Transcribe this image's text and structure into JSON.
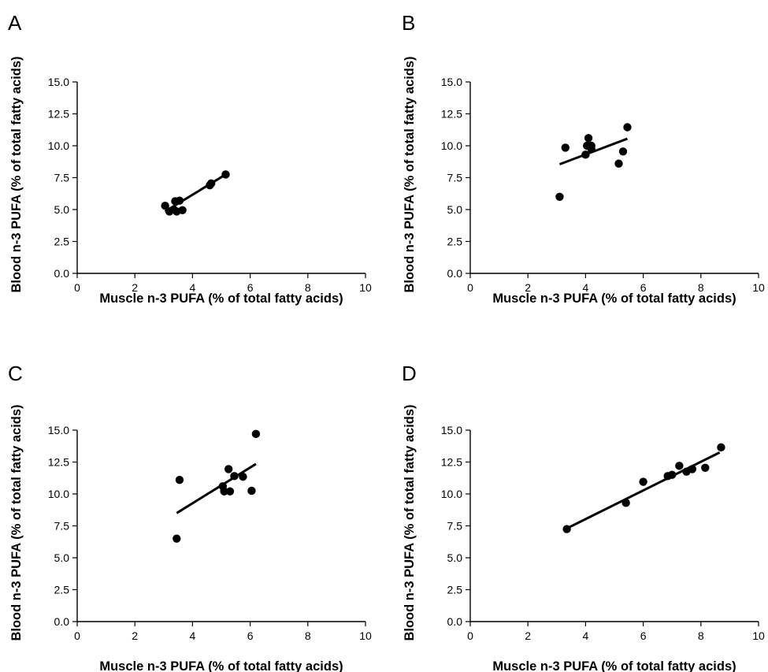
{
  "chart_data": [
    {
      "panel": "A",
      "type": "scatter",
      "xlabel": "Muscle n-3 PUFA (% of total fatty acids)",
      "ylabel": "Blood n-3 PUFA (% of total fatty acids)",
      "xlim": [
        0,
        10
      ],
      "ylim": [
        0,
        15
      ],
      "xticks": [
        "0",
        "2",
        "4",
        "6",
        "8",
        "10"
      ],
      "yticks": [
        "0.0",
        "2.5",
        "5.0",
        "7.5",
        "10.0",
        "12.5",
        "15.0"
      ],
      "points": [
        {
          "x": 3.05,
          "y": 5.3
        },
        {
          "x": 3.2,
          "y": 4.85
        },
        {
          "x": 3.35,
          "y": 5.0
        },
        {
          "x": 3.4,
          "y": 5.65
        },
        {
          "x": 3.45,
          "y": 4.85
        },
        {
          "x": 3.55,
          "y": 5.7
        },
        {
          "x": 3.65,
          "y": 4.95
        },
        {
          "x": 4.6,
          "y": 6.9
        },
        {
          "x": 4.65,
          "y": 7.05
        },
        {
          "x": 5.15,
          "y": 7.75
        }
      ],
      "fit": {
        "x": [
          3.05,
          5.15
        ],
        "y": [
          4.85,
          7.75
        ]
      }
    },
    {
      "panel": "B",
      "type": "scatter",
      "xlabel": "Muscle n-3 PUFA (% of total fatty acids)",
      "ylabel": "Blood n-3 PUFA (% of total fatty acids)",
      "xlim": [
        0,
        10
      ],
      "ylim": [
        0,
        15
      ],
      "xticks": [
        "0",
        "2",
        "4",
        "6",
        "8",
        "10"
      ],
      "yticks": [
        "0.0",
        "2.5",
        "5.0",
        "7.5",
        "10.0",
        "12.5",
        "15.0"
      ],
      "points": [
        {
          "x": 3.1,
          "y": 6.0
        },
        {
          "x": 3.3,
          "y": 9.85
        },
        {
          "x": 4.0,
          "y": 9.3
        },
        {
          "x": 4.05,
          "y": 10.0
        },
        {
          "x": 4.1,
          "y": 10.6
        },
        {
          "x": 4.2,
          "y": 10.0
        },
        {
          "x": 4.2,
          "y": 9.75
        },
        {
          "x": 5.15,
          "y": 8.6
        },
        {
          "x": 5.3,
          "y": 9.55
        },
        {
          "x": 5.45,
          "y": 11.45
        }
      ],
      "fit": {
        "x": [
          3.1,
          5.45
        ],
        "y": [
          8.55,
          10.55
        ]
      }
    },
    {
      "panel": "C",
      "type": "scatter",
      "xlabel": "Muscle n-3 PUFA (% of total fatty acids)",
      "ylabel": "Blood n-3 PUFA (% of total fatty acids)",
      "xlim": [
        0,
        10
      ],
      "ylim": [
        0,
        15
      ],
      "xticks": [
        "0",
        "2",
        "4",
        "6",
        "8",
        "10"
      ],
      "yticks": [
        "0.0",
        "2.5",
        "5.0",
        "7.5",
        "10.0",
        "12.5",
        "15.0"
      ],
      "points": [
        {
          "x": 3.45,
          "y": 6.5
        },
        {
          "x": 3.55,
          "y": 11.1
        },
        {
          "x": 5.05,
          "y": 10.6
        },
        {
          "x": 5.1,
          "y": 10.2
        },
        {
          "x": 5.25,
          "y": 11.95
        },
        {
          "x": 5.3,
          "y": 10.2
        },
        {
          "x": 5.45,
          "y": 11.4
        },
        {
          "x": 5.75,
          "y": 11.35
        },
        {
          "x": 6.05,
          "y": 10.25
        },
        {
          "x": 6.2,
          "y": 14.7
        }
      ],
      "fit": {
        "x": [
          3.45,
          6.2
        ],
        "y": [
          8.5,
          12.35
        ]
      }
    },
    {
      "panel": "D",
      "type": "scatter",
      "xlabel": "Muscle n-3 PUFA (% of total fatty acids)",
      "ylabel": "Blood n-3 PUFA (% of total fatty acids)",
      "xlim": [
        0,
        10
      ],
      "ylim": [
        0,
        15
      ],
      "xticks": [
        "0",
        "2",
        "4",
        "6",
        "8",
        "10"
      ],
      "yticks": [
        "0.0",
        "2.5",
        "5.0",
        "7.5",
        "10.0",
        "12.5",
        "15.0"
      ],
      "points": [
        {
          "x": 3.35,
          "y": 7.25
        },
        {
          "x": 5.4,
          "y": 9.3
        },
        {
          "x": 6.0,
          "y": 10.95
        },
        {
          "x": 6.85,
          "y": 11.4
        },
        {
          "x": 7.0,
          "y": 11.5
        },
        {
          "x": 7.25,
          "y": 12.2
        },
        {
          "x": 7.5,
          "y": 11.75
        },
        {
          "x": 7.7,
          "y": 11.95
        },
        {
          "x": 8.15,
          "y": 12.05
        },
        {
          "x": 8.7,
          "y": 13.65
        }
      ],
      "fit": {
        "x": [
          3.35,
          8.65
        ],
        "y": [
          7.3,
          13.25
        ]
      }
    }
  ]
}
